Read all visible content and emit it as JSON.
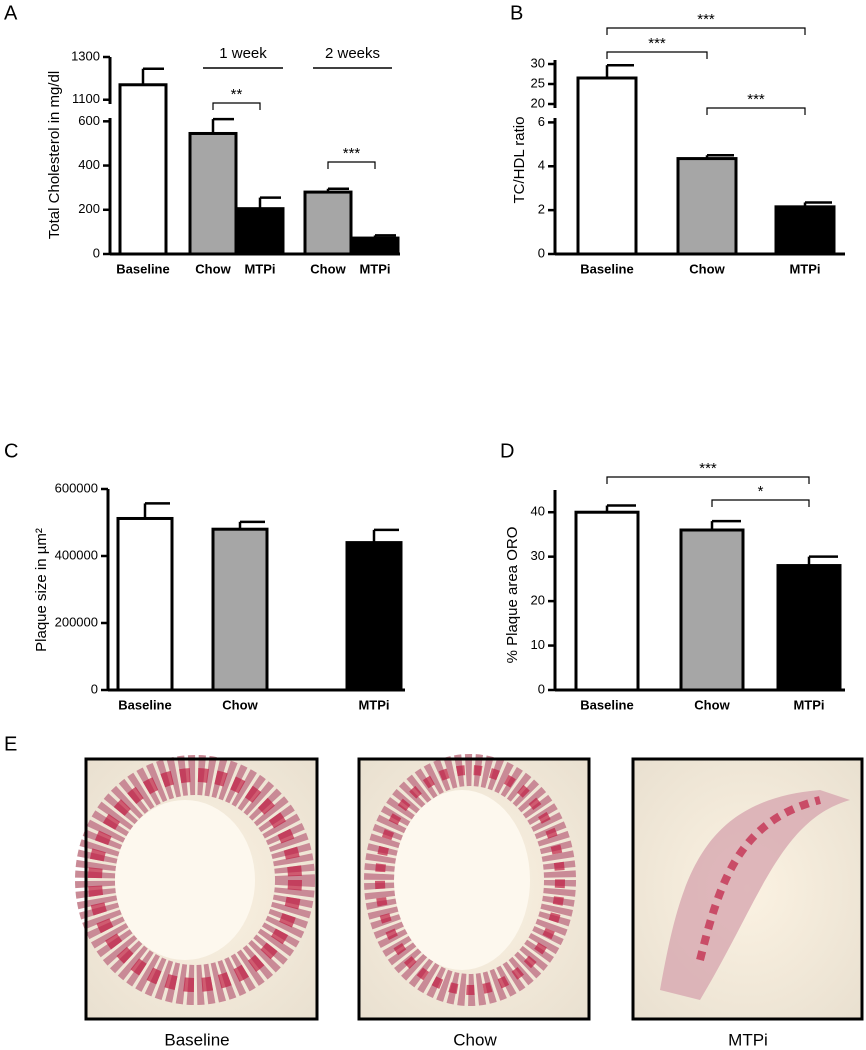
{
  "chart_data": [
    {
      "type": "bar",
      "label": "A",
      "ylabel": "Total Cholesterol in mg/dl",
      "categories": [
        "Baseline",
        "Chow",
        "MTPi",
        "Chow",
        "MTPi"
      ],
      "values": [
        1170,
        545,
        205,
        280,
        72
      ],
      "errors": [
        75,
        65,
        50,
        15,
        12
      ],
      "colors": [
        "#ffffff",
        "#a6a6a6",
        "#000000",
        "#a6a6a6",
        "#000000"
      ],
      "ylim": [
        0,
        1300
      ],
      "ybreak": [
        615,
        1080
      ],
      "yticks": [
        0,
        200,
        400,
        600,
        1100,
        1300
      ],
      "groups": [
        {
          "label": "1 week",
          "from": 1,
          "to": 2
        },
        {
          "label": "2 weeks",
          "from": 3,
          "to": 4
        }
      ],
      "annotations": [
        {
          "text": "**",
          "from": 1,
          "to": 2
        },
        {
          "text": "***",
          "from": 3,
          "to": 4
        }
      ]
    },
    {
      "type": "bar",
      "label": "B",
      "ylabel": "TC/HDL ratio",
      "categories": [
        "Baseline",
        "Chow",
        "MTPi"
      ],
      "values": [
        26.5,
        4.35,
        2.15
      ],
      "errors": [
        3.2,
        0.15,
        0.2
      ],
      "colors": [
        "#ffffff",
        "#a6a6a6",
        "#000000"
      ],
      "ylim": [
        0,
        31
      ],
      "ybreak": [
        6.2,
        19
      ],
      "yticks": [
        0,
        2,
        4,
        6,
        20,
        25,
        30
      ],
      "annotations": [
        {
          "text": "***",
          "from": 0,
          "to": 2
        },
        {
          "text": "***",
          "from": 0,
          "to": 1
        },
        {
          "text": "***",
          "from": 1,
          "to": 2
        }
      ]
    },
    {
      "type": "bar",
      "label": "C",
      "ylabel": "Plaque size in µm²",
      "categories": [
        "Baseline",
        "Chow",
        "MTPi"
      ],
      "values": [
        512000,
        480000,
        440000
      ],
      "errors": [
        45000,
        22000,
        38000
      ],
      "colors": [
        "#ffffff",
        "#a6a6a6",
        "#000000"
      ],
      "ylim": [
        0,
        600000
      ],
      "yticks": [
        0,
        200000,
        400000,
        600000
      ]
    },
    {
      "type": "bar",
      "label": "D",
      "ylabel": "% Plaque area ORO",
      "categories": [
        "Baseline",
        "Chow",
        "MTPi"
      ],
      "values": [
        40,
        36,
        28
      ],
      "errors": [
        1.5,
        2,
        2
      ],
      "colors": [
        "#ffffff",
        "#a6a6a6",
        "#000000"
      ],
      "ylim": [
        0,
        45
      ],
      "yticks": [
        0,
        10,
        20,
        30,
        40
      ],
      "annotations": [
        {
          "text": "***",
          "from": 0,
          "to": 2
        },
        {
          "text": "*",
          "from": 1,
          "to": 2
        }
      ]
    }
  ],
  "panel_e": {
    "label": "E",
    "captions": [
      "Baseline",
      "Chow",
      "MTPi"
    ]
  }
}
